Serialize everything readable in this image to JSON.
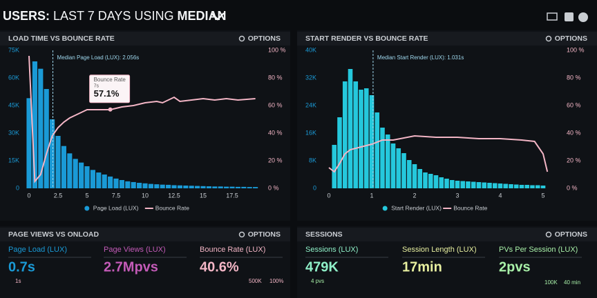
{
  "header": {
    "parts": [
      "USERS:",
      "LAST 7 DAYS",
      "USING",
      "MEDIAN"
    ]
  },
  "chart_data": [
    {
      "type": "bar",
      "title": "LOAD TIME VS BOUNCE RATE",
      "options": "OPTIONS",
      "xlim": [
        -0.5,
        20
      ],
      "xticks": [
        0,
        2.5,
        5,
        7.5,
        10,
        12.5,
        15,
        17.5
      ],
      "ylim": [
        0,
        75000
      ],
      "yticks": [
        0,
        {
          "value": 15000,
          "label": "15K"
        },
        {
          "value": 30000,
          "label": "30K"
        },
        {
          "value": 45000,
          "label": "45K"
        },
        {
          "value": 60000,
          "label": "60K"
        },
        {
          "value": 75000,
          "label": "75K"
        }
      ],
      "y2lim": [
        0,
        100
      ],
      "y2ticks": [
        {
          "value": 0,
          "label": "0 %"
        },
        {
          "value": 20,
          "label": "20 %"
        },
        {
          "value": 40,
          "label": "40 %"
        },
        {
          "value": 60,
          "label": "60 %"
        },
        {
          "value": 80,
          "label": "80 %"
        },
        {
          "value": 100,
          "label": "100 %"
        }
      ],
      "annotation": {
        "label": "Median Page Load (LUX): 2.056s",
        "x": 2.056
      },
      "tooltip": {
        "name": "Bounce Rate",
        "x_label": "7s",
        "x": 7,
        "value": 57.1,
        "value_label": "57.1%"
      },
      "series": [
        {
          "name": "Page Load (LUX)",
          "type": "bar",
          "color": "#1a9ad6",
          "x": [
            0,
            0.5,
            1,
            1.5,
            2,
            2.5,
            3,
            3.5,
            4,
            4.5,
            5,
            5.5,
            6,
            6.5,
            7,
            7.5,
            8,
            8.5,
            9,
            9.5,
            10,
            10.5,
            11,
            11.5,
            12,
            12.5,
            13,
            13.5,
            14,
            14.5,
            15,
            15.5,
            16,
            16.5,
            17,
            17.5,
            18,
            18.5,
            19,
            19.5
          ],
          "values": [
            49000,
            69000,
            65000,
            54000,
            37500,
            28500,
            23000,
            19000,
            16000,
            14000,
            12000,
            10000,
            8600,
            7500,
            6400,
            5300,
            4500,
            3800,
            3400,
            3000,
            2700,
            2400,
            2200,
            2000,
            1900,
            1700,
            1600,
            1500,
            1400,
            1300,
            1200,
            1100,
            1000,
            1000,
            900,
            900,
            800,
            800,
            700,
            700
          ]
        },
        {
          "name": "Bounce Rate",
          "type": "line",
          "axis": "y2",
          "color": "#f4b6c6",
          "x": [
            0,
            0.5,
            1,
            1.5,
            2,
            2.5,
            3,
            3.5,
            4,
            4.5,
            5,
            6,
            7,
            8,
            9,
            10,
            11,
            11.5,
            12.5,
            13,
            14,
            15,
            16,
            17,
            18,
            19.5
          ],
          "values": [
            96,
            5,
            10,
            25,
            38,
            44,
            48,
            51,
            53,
            55,
            57,
            57,
            57,
            59,
            60,
            62,
            63,
            62,
            66,
            63,
            64,
            65,
            64,
            65,
            64,
            65
          ]
        }
      ]
    },
    {
      "type": "bar",
      "title": "START RENDER VS BOUNCE RATE",
      "options": "OPTIONS",
      "xlim": [
        -0.1,
        5.3
      ],
      "xticks": [
        0,
        1,
        2,
        3,
        4,
        5
      ],
      "ylim": [
        0,
        40000
      ],
      "yticks": [
        0,
        {
          "value": 8000,
          "label": "8K"
        },
        {
          "value": 16000,
          "label": "16K"
        },
        {
          "value": 24000,
          "label": "24K"
        },
        {
          "value": 32000,
          "label": "32K"
        },
        {
          "value": 40000,
          "label": "40K"
        }
      ],
      "y2lim": [
        0,
        100
      ],
      "y2ticks": [
        {
          "value": 0,
          "label": "0 %"
        },
        {
          "value": 20,
          "label": "20 %"
        },
        {
          "value": 40,
          "label": "40 %"
        },
        {
          "value": 60,
          "label": "60 %"
        },
        {
          "value": 80,
          "label": "80 %"
        },
        {
          "value": 100,
          "label": "100 %"
        }
      ],
      "annotation": {
        "label": "Median Start Render (LUX): 1.031s",
        "x": 1.031
      },
      "series": [
        {
          "name": "Start Render (LUX)",
          "type": "bar",
          "color": "#25c8dc",
          "x": [
            0.125,
            0.25,
            0.375,
            0.5,
            0.625,
            0.75,
            0.875,
            1,
            1.125,
            1.25,
            1.375,
            1.5,
            1.625,
            1.75,
            1.875,
            2,
            2.125,
            2.25,
            2.375,
            2.5,
            2.625,
            2.75,
            2.875,
            3,
            3.125,
            3.25,
            3.375,
            3.5,
            3.625,
            3.75,
            3.875,
            4,
            4.125,
            4.25,
            4.375,
            4.5,
            4.625,
            4.75,
            4.875,
            5
          ],
          "values": [
            12600,
            20600,
            31000,
            34600,
            31000,
            28600,
            29000,
            27000,
            22000,
            17600,
            15600,
            13000,
            11600,
            10200,
            8200,
            7000,
            5600,
            4600,
            4200,
            3800,
            3200,
            2800,
            2400,
            2200,
            2100,
            2000,
            1900,
            1800,
            1700,
            1600,
            1500,
            1400,
            1300,
            1200,
            1100,
            1000,
            1000,
            900,
            900,
            800
          ]
        },
        {
          "name": "Bounce Rate",
          "type": "line",
          "axis": "y2",
          "color": "#f4b6c6",
          "x": [
            0,
            0.125,
            0.25,
            0.375,
            0.5,
            0.75,
            1,
            1.25,
            1.5,
            2,
            2.5,
            3,
            3.5,
            4,
            4.5,
            4.8,
            5,
            5.1
          ],
          "values": [
            15,
            12,
            18,
            25,
            28,
            30,
            32,
            35,
            35,
            38,
            37,
            37,
            36,
            36,
            35,
            34,
            25,
            12
          ]
        }
      ]
    }
  ],
  "panels": [
    {
      "title": "PAGE VIEWS VS ONLOAD",
      "options": "OPTIONS",
      "stats": [
        {
          "label": "Page Load (LUX)",
          "value": "0.7s",
          "color": "#1a9ad6"
        },
        {
          "label": "Page Views (LUX)",
          "value": "2.7Mpvs",
          "color": "#c45bb8"
        },
        {
          "label": "Bounce Rate (LUX)",
          "value": "40.6%",
          "color": "#f4b6c6"
        }
      ],
      "notes": [
        "1s",
        "500K",
        "100%"
      ]
    },
    {
      "title": "SESSIONS",
      "options": "OPTIONS",
      "stats": [
        {
          "label": "Sessions (LUX)",
          "value": "479K",
          "color": "#8ff0c8"
        },
        {
          "label": "Session Length (LUX)",
          "value": "17min",
          "color": "#e8f0a0"
        },
        {
          "label": "PVs Per Session (LUX)",
          "value": "2pvs",
          "color": "#a8f0a8"
        }
      ],
      "notes": [
        "4 pvs",
        "100K",
        "40 min"
      ]
    }
  ]
}
